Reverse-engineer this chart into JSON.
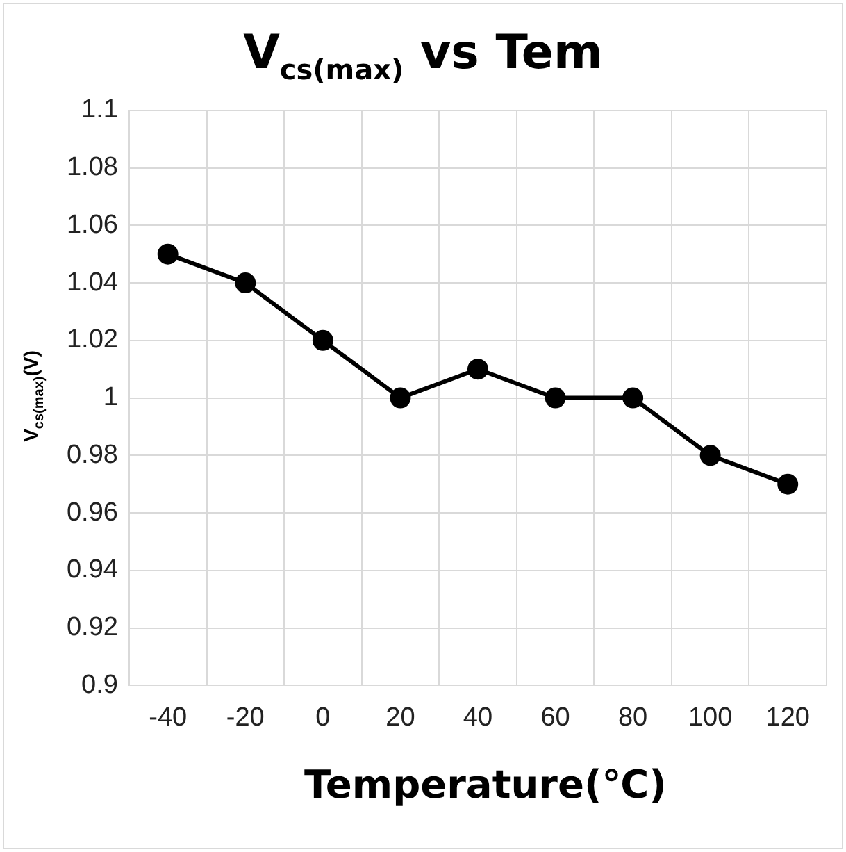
{
  "chart_data": {
    "type": "line",
    "title": "V$_{cs(max)}$ vs Tem",
    "xlabel": "Temperature(℃)",
    "ylabel": "V$_{cs(max)}$(V)",
    "categories": [
      "-40",
      "-20",
      "0",
      "20",
      "40",
      "60",
      "80",
      "100",
      "120"
    ],
    "series": [
      {
        "color": "#000000",
        "values": [
          1.05,
          1.04,
          1.02,
          1.0,
          1.01,
          1.0,
          1.0,
          0.98,
          0.97
        ]
      }
    ],
    "ylim": [
      0.9,
      1.1
    ],
    "yticks": [
      0.9,
      0.92,
      0.94,
      0.96,
      0.98,
      1,
      1.02,
      1.04,
      1.06,
      1.08,
      1.1
    ],
    "grid": true,
    "legend": false,
    "marker": "circle",
    "line_style": "solid"
  }
}
